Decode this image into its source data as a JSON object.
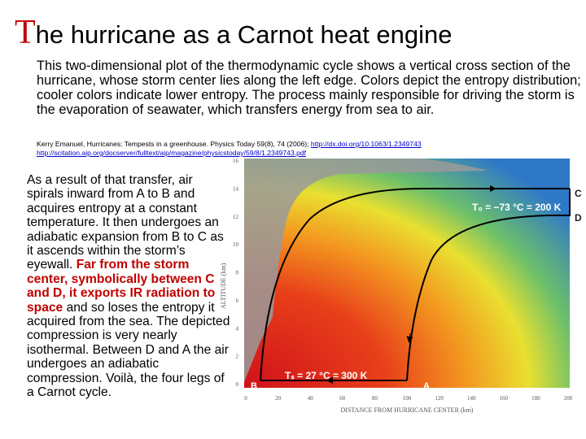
{
  "title": {
    "initial": "T",
    "rest": "he hurricane as a Carnot heat engine"
  },
  "intro": "This two-dimensional plot of the thermodynamic cycle shows a vertical cross section of the hurricane, whose storm center lies along the left edge. Colors depict the entropy distribution; cooler colors indicate lower entropy. The process mainly responsible for driving the storm is the evaporation of seawater, which transfers energy from sea to air.",
  "citation": {
    "text": "Kerry Emanuel, Hurricanes: Tempests in a greenhouse. Physics Today 59(8), 74 (2006);",
    "link1": "http://dx.doi.org/10.1063/1.2349743",
    "link2": "http://scitation.aip.org/docserver/fulltext/aip/magazine/physicstoday/59/8/1.2349743.pdf"
  },
  "body": {
    "part1": "As a result of that transfer, air spirals inward from A to B and acquires entropy at a constant temperature. It then undergoes an adiabatic expansion from B to C as it ascends within the storm’s eyewall.",
    "highlight": "Far from the storm center, symbolically between C and D, it exports IR radiation to space",
    "part2": "and so loses the entropy it acquired from the sea. The depicted compression is very nearly isothermal. Between D and A the air undergoes an adiabatic compression. Voilà, the four legs of a Carnot cycle."
  },
  "figure": {
    "ylabel": "ALTITUDE (km)",
    "xlabel": "DISTANCE FROM HURRICANE CENTER (km)",
    "yticks": [
      "16",
      "14",
      "12",
      "10",
      "8",
      "6",
      "4",
      "2",
      "0"
    ],
    "xticks": [
      "0",
      "20",
      "40",
      "60",
      "80",
      "100",
      "120",
      "140",
      "160",
      "180",
      "200"
    ],
    "points": {
      "A": "A",
      "B": "B",
      "C": "C",
      "D": "D"
    },
    "t_top": "T₀ = −73 °C = 200 K",
    "t_surface": "Tₛ = 27 °C = 300 K"
  }
}
